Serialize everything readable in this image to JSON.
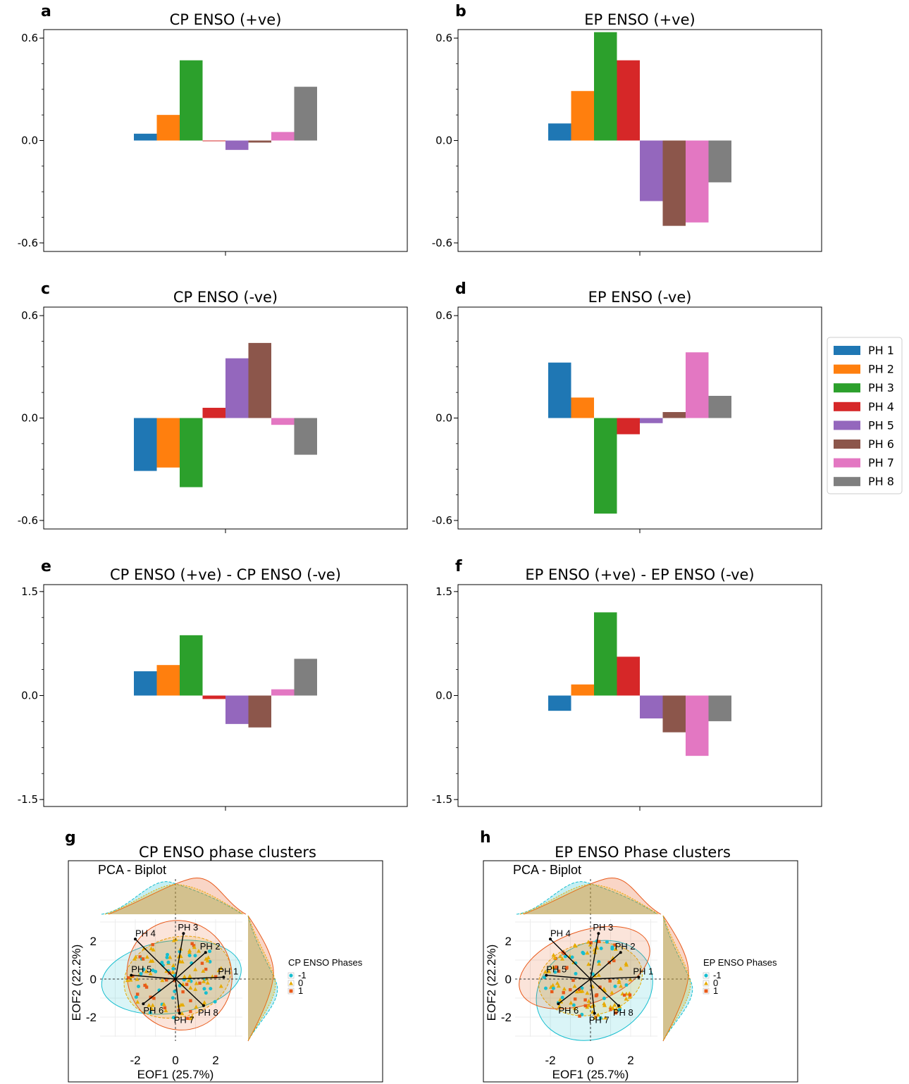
{
  "palette": [
    "#1f77b4",
    "#ff7f0e",
    "#2ca02c",
    "#d62728",
    "#9467bd",
    "#8c564b",
    "#e377c2",
    "#7f7f7f"
  ],
  "legend": [
    "PH 1",
    "PH 2",
    "PH 3",
    "PH 4",
    "PH 5",
    "PH 6",
    "PH 7",
    "PH 8"
  ],
  "chart_data": [
    {
      "type": "bar",
      "panel": "a",
      "title": "CP ENSO (+ve)",
      "categories": [
        "PH 1",
        "PH 2",
        "PH 3",
        "PH 4",
        "PH 5",
        "PH 6",
        "PH 7",
        "PH 8"
      ],
      "values": [
        0.04,
        0.15,
        0.47,
        -0.003,
        -0.055,
        -0.012,
        0.05,
        0.315
      ],
      "ylim": [
        -0.65,
        0.65
      ],
      "yticks": [
        "0.6",
        "0.0",
        "-0.6"
      ]
    },
    {
      "type": "bar",
      "panel": "b",
      "title": "EP ENSO (+ve)",
      "categories": [
        "PH 1",
        "PH 2",
        "PH 3",
        "PH 4",
        "PH 5",
        "PH 6",
        "PH 7",
        "PH 8"
      ],
      "values": [
        0.1,
        0.29,
        0.635,
        0.47,
        -0.355,
        -0.5,
        -0.48,
        -0.245
      ],
      "ylim": [
        -0.65,
        0.65
      ],
      "yticks": [
        "0.6",
        "0.0",
        "-0.6"
      ]
    },
    {
      "type": "bar",
      "panel": "c",
      "title": "CP ENSO (-ve)",
      "categories": [
        "PH 1",
        "PH 2",
        "PH 3",
        "PH 4",
        "PH 5",
        "PH 6",
        "PH 7",
        "PH 8"
      ],
      "values": [
        -0.31,
        -0.29,
        -0.405,
        0.06,
        0.35,
        0.44,
        -0.04,
        -0.215
      ],
      "ylim": [
        -0.65,
        0.65
      ],
      "yticks": [
        "0.6",
        "0.0",
        "-0.6"
      ]
    },
    {
      "type": "bar",
      "panel": "d",
      "title": "EP ENSO (-ve)",
      "categories": [
        "PH 1",
        "PH 2",
        "PH 3",
        "PH 4",
        "PH 5",
        "PH 6",
        "PH 7",
        "PH 8"
      ],
      "values": [
        0.325,
        0.12,
        -0.56,
        -0.095,
        -0.03,
        0.035,
        0.385,
        0.13
      ],
      "ylim": [
        -0.65,
        0.65
      ],
      "yticks": [
        "0.6",
        "0.0",
        "-0.6"
      ]
    },
    {
      "type": "bar",
      "panel": "e",
      "title": "CP ENSO (+ve) - CP ENSO (-ve)",
      "categories": [
        "PH 1",
        "PH 2",
        "PH 3",
        "PH 4",
        "PH 5",
        "PH 6",
        "PH 7",
        "PH 8"
      ],
      "values": [
        0.35,
        0.44,
        0.87,
        -0.05,
        -0.41,
        -0.46,
        0.09,
        0.53
      ],
      "ylim": [
        -1.6,
        1.6
      ],
      "yticks": [
        "1.5",
        "0.0",
        "-1.5"
      ]
    },
    {
      "type": "bar",
      "panel": "f",
      "title": "EP ENSO (+ve) - EP ENSO (-ve)",
      "categories": [
        "PH 1",
        "PH 2",
        "PH 3",
        "PH 4",
        "PH 5",
        "PH 6",
        "PH 7",
        "PH 8"
      ],
      "values": [
        -0.22,
        0.16,
        1.2,
        0.56,
        -0.33,
        -0.53,
        -0.87,
        -0.37
      ],
      "ylim": [
        -1.6,
        1.6
      ],
      "yticks": [
        "1.5",
        "0.0",
        "-1.5"
      ]
    },
    {
      "type": "scatter",
      "panel": "g",
      "title": "CP ENSO phase clusters",
      "subtitle": "PCA - Biplot",
      "xlabel": "EOF1 (25.7%)",
      "ylabel": "EOF2 (22.2%)",
      "xticks": [
        "-2",
        "0",
        "2"
      ],
      "yticks": [
        "2",
        "0",
        "-2"
      ],
      "legend_title": "CP ENSO Phases",
      "legend": [
        "-1",
        "0",
        "1"
      ],
      "loadings": [
        {
          "name": "PH 1",
          "x": 2.4,
          "y": 0.1
        },
        {
          "name": "PH 2",
          "x": 1.5,
          "y": 1.4
        },
        {
          "name": "PH 3",
          "x": 0.4,
          "y": 2.4
        },
        {
          "name": "PH 4",
          "x": -2.0,
          "y": 2.1
        },
        {
          "name": "PH 5",
          "x": -2.2,
          "y": 0.2
        },
        {
          "name": "PH 6",
          "x": -1.6,
          "y": -1.3
        },
        {
          "name": "PH 7",
          "x": 0.2,
          "y": -1.8
        },
        {
          "name": "PH 8",
          "x": 1.4,
          "y": -1.4
        }
      ]
    },
    {
      "type": "scatter",
      "panel": "h",
      "title": "EP ENSO Phase clusters",
      "subtitle": "PCA - Biplot",
      "xlabel": "EOF1 (25.7%)",
      "ylabel": "EOF2 (22.2%)",
      "xticks": [
        "-2",
        "0",
        "2"
      ],
      "yticks": [
        "2",
        "0",
        "-2"
      ],
      "legend_title": "EP ENSO Phases",
      "legend": [
        "-1",
        "0",
        "1"
      ],
      "loadings": [
        {
          "name": "PH 1",
          "x": 2.4,
          "y": 0.1
        },
        {
          "name": "PH 2",
          "x": 1.5,
          "y": 1.4
        },
        {
          "name": "PH 3",
          "x": 0.4,
          "y": 2.4
        },
        {
          "name": "PH 4",
          "x": -2.0,
          "y": 2.1
        },
        {
          "name": "PH 5",
          "x": -2.2,
          "y": 0.2
        },
        {
          "name": "PH 6",
          "x": -1.6,
          "y": -1.3
        },
        {
          "name": "PH 7",
          "x": 0.2,
          "y": -1.8
        },
        {
          "name": "PH 8",
          "x": 1.4,
          "y": -1.4
        }
      ]
    }
  ],
  "phase_colors": {
    "-1": "#17becf",
    "0": "#e6ab02",
    "1": "#e8591a"
  }
}
